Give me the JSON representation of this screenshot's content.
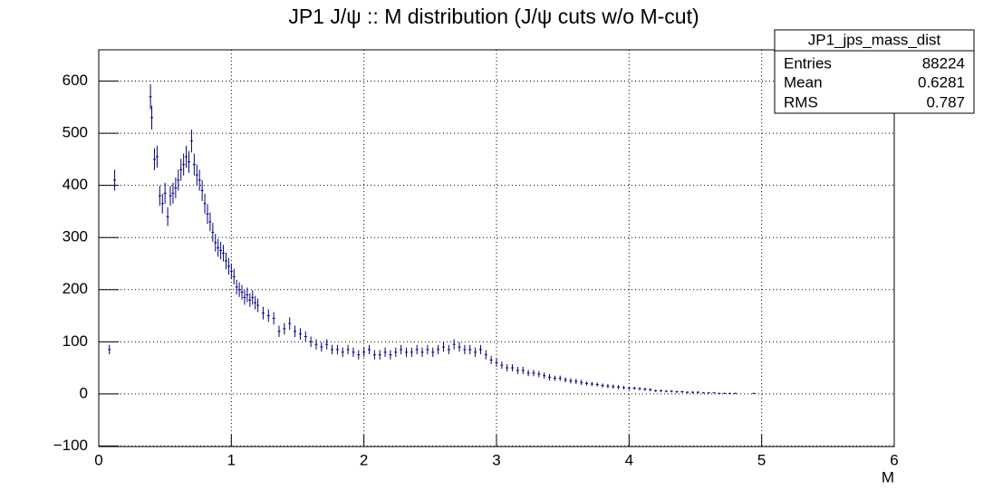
{
  "chart_data": {
    "type": "errorbar",
    "title": "JP1 J/ψ :: M distribution (J/ψ cuts w/o M-cut)",
    "x_label": "M",
    "color": "#000080",
    "grid": true,
    "xlim": [
      0,
      6
    ],
    "xticks": [
      0,
      1,
      2,
      3,
      4,
      5,
      6
    ],
    "ylim": [
      -101,
      660
    ],
    "yticks": [
      {
        "value": -100,
        "label": "−100"
      },
      0,
      100,
      200,
      300,
      400,
      500,
      600
    ],
    "x": [
      0.08,
      0.12,
      0.39,
      0.4,
      0.42,
      0.44,
      0.46,
      0.48,
      0.5,
      0.52,
      0.54,
      0.56,
      0.58,
      0.6,
      0.62,
      0.64,
      0.66,
      0.68,
      0.7,
      0.72,
      0.74,
      0.76,
      0.78,
      0.8,
      0.82,
      0.84,
      0.86,
      0.88,
      0.9,
      0.92,
      0.94,
      0.96,
      0.98,
      1.0,
      1.02,
      1.04,
      1.06,
      1.08,
      1.1,
      1.12,
      1.14,
      1.16,
      1.18,
      1.2,
      1.24,
      1.28,
      1.32,
      1.36,
      1.4,
      1.44,
      1.48,
      1.52,
      1.56,
      1.6,
      1.64,
      1.68,
      1.72,
      1.76,
      1.8,
      1.84,
      1.88,
      1.92,
      1.96,
      2.0,
      2.04,
      2.08,
      2.12,
      2.16,
      2.2,
      2.24,
      2.28,
      2.32,
      2.36,
      2.4,
      2.44,
      2.48,
      2.52,
      2.56,
      2.6,
      2.64,
      2.68,
      2.72,
      2.76,
      2.8,
      2.84,
      2.88,
      2.92,
      2.96,
      3.0,
      3.04,
      3.08,
      3.12,
      3.16,
      3.2,
      3.24,
      3.28,
      3.32,
      3.36,
      3.4,
      3.44,
      3.48,
      3.52,
      3.56,
      3.6,
      3.64,
      3.68,
      3.72,
      3.76,
      3.8,
      3.84,
      3.88,
      3.92,
      3.96,
      4.0,
      4.04,
      4.08,
      4.12,
      4.16,
      4.2,
      4.24,
      4.28,
      4.32,
      4.36,
      4.4,
      4.44,
      4.48,
      4.52,
      4.56,
      4.6,
      4.64,
      4.68,
      4.72,
      4.76,
      4.8,
      4.94
    ],
    "values": [
      85,
      410,
      570,
      530,
      450,
      455,
      380,
      365,
      385,
      340,
      380,
      385,
      395,
      410,
      430,
      440,
      455,
      445,
      485,
      440,
      420,
      410,
      390,
      365,
      345,
      330,
      310,
      290,
      280,
      275,
      270,
      255,
      245,
      235,
      225,
      205,
      200,
      195,
      185,
      190,
      180,
      185,
      175,
      170,
      155,
      150,
      145,
      120,
      125,
      135,
      120,
      115,
      110,
      100,
      95,
      90,
      95,
      85,
      85,
      80,
      85,
      80,
      75,
      80,
      85,
      75,
      75,
      80,
      75,
      80,
      85,
      80,
      80,
      85,
      80,
      85,
      80,
      85,
      90,
      85,
      95,
      90,
      85,
      85,
      80,
      85,
      75,
      65,
      60,
      55,
      50,
      50,
      45,
      45,
      40,
      40,
      38,
      35,
      32,
      30,
      30,
      27,
      25,
      24,
      22,
      20,
      19,
      18,
      16,
      15,
      14,
      13,
      12,
      11,
      11,
      10,
      9,
      8,
      6,
      6,
      5,
      5,
      4,
      4,
      3,
      3,
      3,
      2,
      2,
      2,
      1,
      1,
      1,
      1,
      1
    ],
    "errors": [
      9,
      20,
      24,
      23,
      21,
      21,
      19,
      19,
      20,
      18,
      19,
      20,
      20,
      20,
      21,
      21,
      21,
      21,
      22,
      21,
      20,
      20,
      20,
      19,
      19,
      18,
      18,
      17,
      17,
      17,
      16,
      16,
      16,
      15,
      15,
      14,
      14,
      14,
      14,
      14,
      13,
      14,
      13,
      13,
      12,
      12,
      12,
      11,
      11,
      12,
      11,
      11,
      10,
      10,
      10,
      9,
      10,
      9,
      9,
      9,
      9,
      9,
      9,
      9,
      9,
      9,
      9,
      9,
      9,
      9,
      9,
      9,
      9,
      9,
      9,
      9,
      9,
      9,
      9,
      9,
      10,
      9,
      9,
      9,
      9,
      9,
      9,
      8,
      8,
      7,
      7,
      7,
      7,
      7,
      6,
      6,
      6,
      6,
      6,
      5,
      5,
      5,
      5,
      5,
      5,
      4,
      4,
      4,
      4,
      4,
      4,
      4,
      3,
      3,
      3,
      3,
      3,
      3,
      2,
      2,
      2,
      2,
      2,
      2,
      2,
      2,
      2,
      1,
      1,
      1,
      1,
      1,
      1,
      1,
      1
    ],
    "stats": {
      "title": "JP1_jps_mass_dist",
      "rows": [
        {
          "label": "Entries",
          "value": 88224
        },
        {
          "label": "Mean",
          "value": 0.6281
        },
        {
          "label": "RMS",
          "value": 0.787
        }
      ]
    }
  }
}
